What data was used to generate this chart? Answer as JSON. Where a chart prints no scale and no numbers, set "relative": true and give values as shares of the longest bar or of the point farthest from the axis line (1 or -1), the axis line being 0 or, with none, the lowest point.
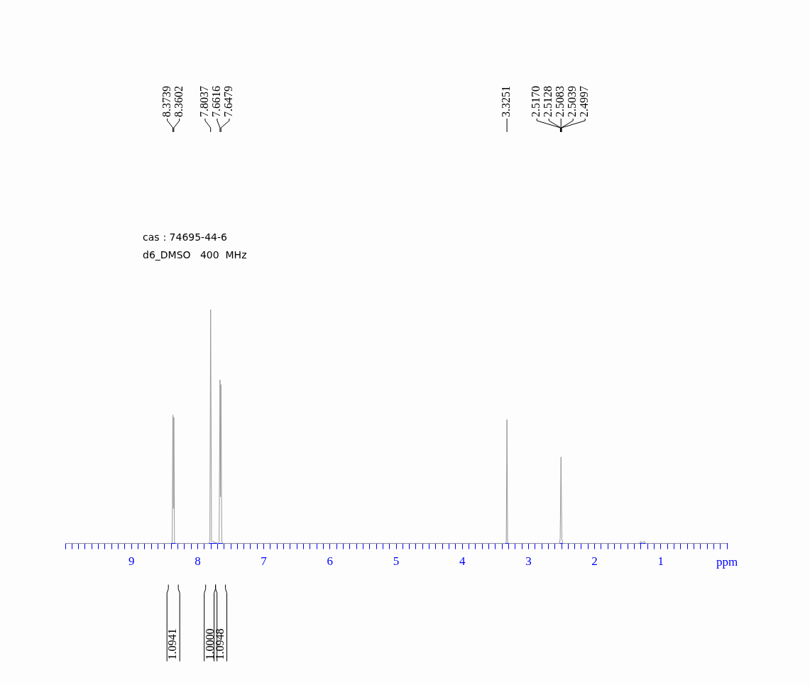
{
  "chart_data": {
    "type": "line",
    "relative": true,
    "title": "cas：74695-44-6",
    "subtitle": "d6_DMSO   400  MHz",
    "xlabel": "ppm",
    "xlim": [
      10,
      0
    ],
    "xticks": [
      {
        "value": 10,
        "label": null
      },
      {
        "value": 9.9,
        "label": null
      },
      {
        "value": 9.8,
        "label": null
      },
      {
        "value": 9.7,
        "label": null
      },
      {
        "value": 9.6,
        "label": null
      },
      {
        "value": 9.5,
        "label": null
      },
      {
        "value": 9.4,
        "label": null
      },
      {
        "value": 9.3,
        "label": null
      },
      {
        "value": 9.2,
        "label": null
      },
      {
        "value": 9.1,
        "label": null
      },
      9,
      {
        "value": 8.9,
        "label": null
      },
      {
        "value": 8.8,
        "label": null
      },
      {
        "value": 8.7,
        "label": null
      },
      {
        "value": 8.6,
        "label": null
      },
      {
        "value": 8.5,
        "label": null
      },
      {
        "value": 8.4,
        "label": null
      },
      {
        "value": 8.3,
        "label": null
      },
      {
        "value": 8.2,
        "label": null
      },
      {
        "value": 8.1,
        "label": null
      },
      8,
      {
        "value": 7.9,
        "label": null
      },
      {
        "value": 7.8,
        "label": null
      },
      {
        "value": 7.7,
        "label": null
      },
      {
        "value": 7.6,
        "label": null
      },
      {
        "value": 7.5,
        "label": null
      },
      {
        "value": 7.4,
        "label": null
      },
      {
        "value": 7.3,
        "label": null
      },
      {
        "value": 7.2,
        "label": null
      },
      {
        "value": 7.1,
        "label": null
      },
      7,
      {
        "value": 6.9,
        "label": null
      },
      {
        "value": 6.8,
        "label": null
      },
      {
        "value": 6.7,
        "label": null
      },
      {
        "value": 6.6,
        "label": null
      },
      {
        "value": 6.5,
        "label": null
      },
      {
        "value": 6.4,
        "label": null
      },
      {
        "value": 6.3,
        "label": null
      },
      {
        "value": 6.2,
        "label": null
      },
      {
        "value": 6.1,
        "label": null
      },
      6,
      {
        "value": 5.9,
        "label": null
      },
      {
        "value": 5.8,
        "label": null
      },
      {
        "value": 5.7,
        "label": null
      },
      {
        "value": 5.6,
        "label": null
      },
      {
        "value": 5.5,
        "label": null
      },
      {
        "value": 5.4,
        "label": null
      },
      {
        "value": 5.3,
        "label": null
      },
      {
        "value": 5.2,
        "label": null
      },
      {
        "value": 5.1,
        "label": null
      },
      5,
      {
        "value": 4.9,
        "label": null
      },
      {
        "value": 4.8,
        "label": null
      },
      {
        "value": 4.7,
        "label": null
      },
      {
        "value": 4.6,
        "label": null
      },
      {
        "value": 4.5,
        "label": null
      },
      {
        "value": 4.4,
        "label": null
      },
      {
        "value": 4.3,
        "label": null
      },
      {
        "value": 4.2,
        "label": null
      },
      {
        "value": 4.1,
        "label": null
      },
      4,
      {
        "value": 3.9,
        "label": null
      },
      {
        "value": 3.8,
        "label": null
      },
      {
        "value": 3.7,
        "label": null
      },
      {
        "value": 3.6,
        "label": null
      },
      {
        "value": 3.5,
        "label": null
      },
      {
        "value": 3.4,
        "label": null
      },
      {
        "value": 3.3,
        "label": null
      },
      {
        "value": 3.2,
        "label": null
      },
      {
        "value": 3.1,
        "label": null
      },
      3,
      {
        "value": 2.9,
        "label": null
      },
      {
        "value": 2.8,
        "label": null
      },
      {
        "value": 2.7,
        "label": null
      },
      {
        "value": 2.6,
        "label": null
      },
      {
        "value": 2.5,
        "label": null
      },
      {
        "value": 2.4,
        "label": null
      },
      {
        "value": 2.3,
        "label": null
      },
      {
        "value": 2.2,
        "label": null
      },
      {
        "value": 2.1,
        "label": null
      },
      2,
      {
        "value": 1.9,
        "label": null
      },
      {
        "value": 1.8,
        "label": null
      },
      {
        "value": 1.7,
        "label": null
      },
      {
        "value": 1.6,
        "label": null
      },
      {
        "value": 1.5,
        "label": null
      },
      {
        "value": 1.4,
        "label": null
      },
      {
        "value": 1.3,
        "label": null
      },
      {
        "value": 1.2,
        "label": null
      },
      {
        "value": 1.1,
        "label": null
      },
      1,
      {
        "value": 0.9,
        "label": null
      },
      {
        "value": 0.8,
        "label": null
      },
      {
        "value": 0.7,
        "label": null
      },
      {
        "value": 0.6,
        "label": null
      },
      {
        "value": 0.5,
        "label": null
      },
      {
        "value": 0.4,
        "label": null
      },
      {
        "value": 0.3,
        "label": null
      },
      {
        "value": 0.2,
        "label": null
      },
      {
        "value": 0.1,
        "label": null
      },
      {
        "value": 0,
        "label": null
      }
    ],
    "series": [
      {
        "color": "#9a9a9a",
        "x": [
          10,
          8.4,
          8.385,
          8.3739,
          8.367,
          8.3602,
          8.35,
          8.33,
          7.83,
          7.815,
          7.8037,
          7.79,
          7.69,
          7.675,
          7.6616,
          7.655,
          7.6479,
          7.635,
          7.62,
          3.35,
          3.335,
          3.3251,
          3.315,
          3.3,
          2.53,
          2.52,
          2.5083,
          2.495,
          2.48,
          1.32,
          1.3,
          1.28,
          1.25,
          1.23,
          0
        ],
        "values": [
          0,
          0,
          0.005,
          0.55,
          0.15,
          0.54,
          0.005,
          0,
          0,
          0.01,
          1,
          0.01,
          0,
          0.01,
          0.7,
          0.2,
          0.68,
          0.01,
          0,
          0,
          0.005,
          0.53,
          0.005,
          0,
          0,
          0.02,
          0.37,
          0.02,
          0,
          0,
          0.01,
          0,
          0.01,
          0,
          0
        ]
      }
    ],
    "annotations": [
      "8.3739",
      "8.3602",
      "7.8037",
      "7.6616",
      "7.6479",
      "3.3251",
      "2.5170",
      "2.5128",
      "2.5083",
      "2.5039",
      "2.4997",
      "1.0941",
      "1.0000",
      "1.0948"
    ]
  }
}
